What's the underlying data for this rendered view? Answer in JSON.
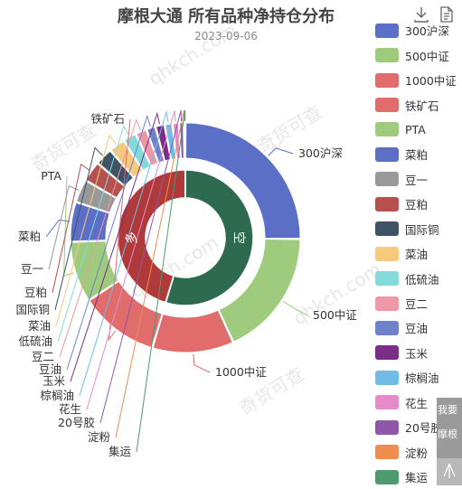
{
  "chart_data": {
    "type": "pie",
    "title": "摩根大通 所有品种净持仓分布",
    "subtitle": "2023-09-06",
    "legend_position": "right",
    "outer_ring": {
      "slices": [
        {
          "name": "300沪深",
          "value": 25.2,
          "color": "#5B6FC7"
        },
        {
          "name": "500中证",
          "value": 18.0,
          "color": "#9ECB7C"
        },
        {
          "name": "1000中证",
          "value": 11.5,
          "color": "#E06C6C"
        },
        {
          "name": "铁矿石",
          "value": 11.2,
          "color": "#E06C6C"
        },
        {
          "name": "PTA",
          "value": 8.6,
          "color": "#9ECB7C"
        },
        {
          "name": "菜粕",
          "value": 5.6,
          "color": "#5B6FC7"
        },
        {
          "name": "豆一",
          "value": 3.3,
          "color": "#999999"
        },
        {
          "name": "豆粕",
          "value": 2.9,
          "color": "#B5524F"
        },
        {
          "name": "国际铜",
          "value": 2.5,
          "color": "#3F5367"
        },
        {
          "name": "菜油",
          "value": 2.3,
          "color": "#F6C97D"
        },
        {
          "name": "低硫油",
          "value": 1.9,
          "color": "#84DADB"
        },
        {
          "name": "豆二",
          "value": 1.6,
          "color": "#EE97A6"
        },
        {
          "name": "豆油",
          "value": 1.3,
          "color": "#6F82C9"
        },
        {
          "name": "玉米",
          "value": 1.3,
          "color": "#7A2E86"
        },
        {
          "name": "棕榈油",
          "value": 1.1,
          "color": "#6FBDE5"
        },
        {
          "name": "花生",
          "value": 0.9,
          "color": "#E58ACB"
        },
        {
          "name": "20号胶",
          "value": 0.7,
          "color": "#9056A8"
        },
        {
          "name": "淀粉",
          "value": 0.1,
          "color": "#EF8C4F"
        },
        {
          "name": "集运",
          "value": 0.1,
          "color": "#4F9A6E"
        }
      ]
    },
    "inner_ring": {
      "slices": [
        {
          "name": "空",
          "value": 54.7,
          "color": "#2D6A4F"
        },
        {
          "name": "多",
          "value": 45.3,
          "color": "#B03A3A"
        }
      ]
    }
  },
  "legend": [
    {
      "label": "300沪深",
      "color": "#5B6FC7"
    },
    {
      "label": "500中证",
      "color": "#9ECB7C"
    },
    {
      "label": "1000中证",
      "color": "#E06C6C"
    },
    {
      "label": "铁矿石",
      "color": "#E06C6C"
    },
    {
      "label": "PTA",
      "color": "#9ECB7C"
    },
    {
      "label": "菜粕",
      "color": "#5B6FC7"
    },
    {
      "label": "豆一",
      "color": "#999999"
    },
    {
      "label": "豆粕",
      "color": "#B5524F"
    },
    {
      "label": "国际铜",
      "color": "#3F5367"
    },
    {
      "label": "菜油",
      "color": "#F6C97D"
    },
    {
      "label": "低硫油",
      "color": "#84DADB"
    },
    {
      "label": "豆二",
      "color": "#EE97A6"
    },
    {
      "label": "豆油",
      "color": "#6F82C9"
    },
    {
      "label": "玉米",
      "color": "#7A2E86"
    },
    {
      "label": "棕榈油",
      "color": "#6FBDE5"
    },
    {
      "label": "花生",
      "color": "#E58ACB"
    },
    {
      "label": "20号胶",
      "color": "#9056A8"
    },
    {
      "label": "淀粉",
      "color": "#EF8C4F"
    },
    {
      "label": "集运",
      "color": "#4F9A6E"
    }
  ],
  "toolbox": {
    "download_icon": "download-icon",
    "data_view_icon": "document-icon"
  },
  "side_panel": {
    "button1_label": "我要",
    "button2_label": "摩根",
    "arrow_icon": "scroll-top-icon"
  },
  "watermarks": [
    "奇货可查",
    "qhkch.com",
    "奇货可查",
    "qhkch.com",
    "奇货可查",
    "qhkch.com"
  ]
}
